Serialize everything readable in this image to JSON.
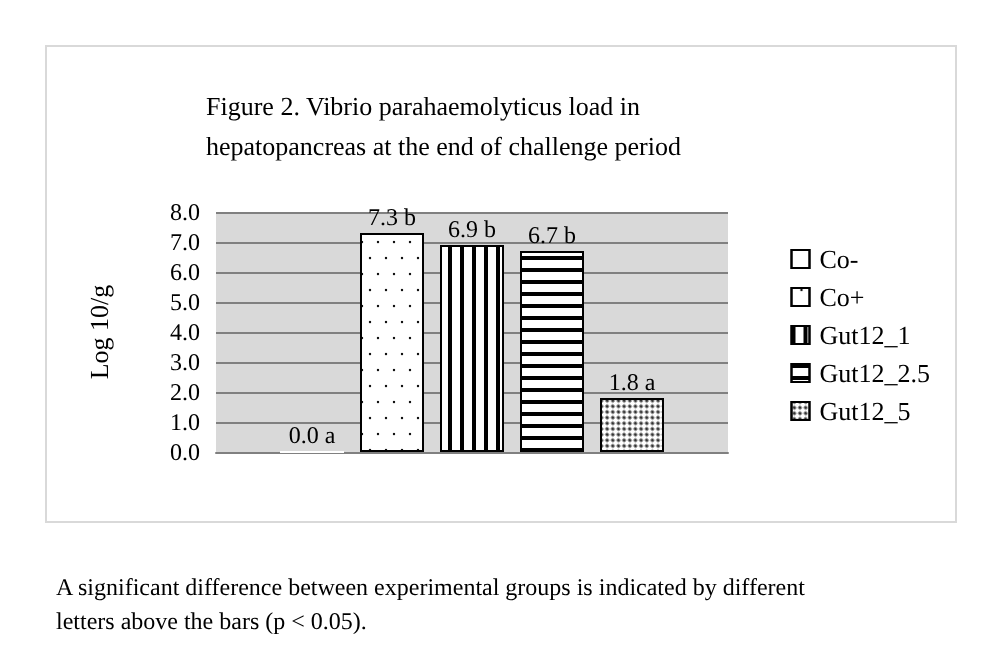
{
  "chart_data": {
    "type": "bar",
    "title": "Figure 2. Vibrio parahaemolyticus load in hepatopancreas at the end of challenge period",
    "ylabel": "Log 10/g",
    "categories": [
      null
    ],
    "series": [
      {
        "name": "Co-",
        "color": "#ffffff",
        "values": [
          0.0
        ],
        "value_labels": [
          "0.0 a"
        ]
      },
      {
        "name": "Co+",
        "color": "#ffffff",
        "values": [
          7.3
        ],
        "value_labels": [
          "7.3 b"
        ]
      },
      {
        "name": "Gut12_1",
        "color": "#ffffff",
        "values": [
          6.9
        ],
        "value_labels": [
          "6.9 b"
        ]
      },
      {
        "name": "Gut12_2.5",
        "color": "#ffffff",
        "values": [
          6.7
        ],
        "value_labels": [
          "6.7 b"
        ]
      },
      {
        "name": "Gut12_5",
        "color": "#ffffff",
        "values": [
          1.8
        ],
        "value_labels": [
          "1.8 a"
        ]
      }
    ],
    "ylim": [
      0,
      8
    ],
    "yticks": [
      {
        "value": 0,
        "label": "0.0"
      },
      {
        "value": 1,
        "label": "1.0"
      },
      {
        "value": 2,
        "label": "2.0"
      },
      {
        "value": 3,
        "label": "3.0"
      },
      {
        "value": 4,
        "label": "4.0"
      },
      {
        "value": 5,
        "label": "5.0"
      },
      {
        "value": 6,
        "label": "6.0"
      },
      {
        "value": 7,
        "label": "7.0"
      },
      {
        "value": 8,
        "label": "8.0"
      }
    ],
    "grid": "y",
    "legend": "right",
    "annotations": [
      "A significant difference between experimental groups is indicated by different letters above the bars (p < 0.05)."
    ]
  }
}
